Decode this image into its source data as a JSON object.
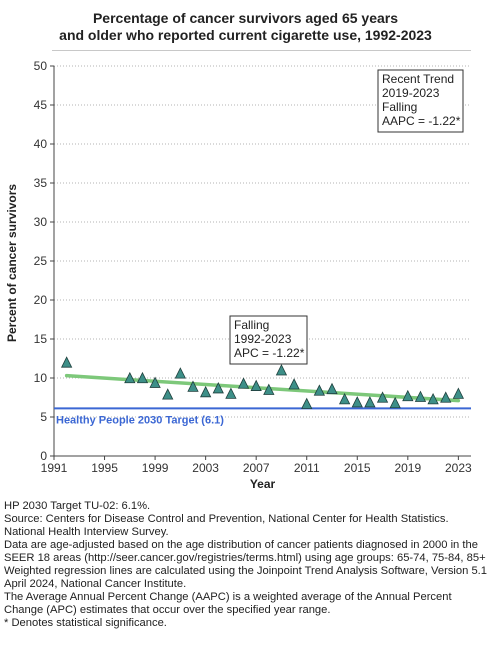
{
  "chart_data": {
    "type": "scatter",
    "title_lines": [
      "Percentage of cancer survivors aged 65 years",
      "and older who reported current cigarette use, 1992-2023"
    ],
    "xlabel": "Year",
    "ylabel": "Percent of cancer survivors",
    "xlim": [
      1991,
      2024
    ],
    "ylim": [
      0,
      50
    ],
    "xticks": [
      1991,
      1995,
      1999,
      2003,
      2007,
      2011,
      2015,
      2019,
      2023
    ],
    "yticks": [
      0,
      5,
      10,
      15,
      20,
      25,
      30,
      35,
      40,
      45,
      50
    ],
    "grid": "horizontal dotted",
    "points": [
      {
        "x": 1992,
        "y": 11.9
      },
      {
        "x": 1997,
        "y": 9.9
      },
      {
        "x": 1998,
        "y": 9.9
      },
      {
        "x": 1999,
        "y": 9.3
      },
      {
        "x": 2000,
        "y": 7.8
      },
      {
        "x": 2001,
        "y": 10.5
      },
      {
        "x": 2002,
        "y": 8.8
      },
      {
        "x": 2003,
        "y": 8.1
      },
      {
        "x": 2004,
        "y": 8.6
      },
      {
        "x": 2005,
        "y": 7.9
      },
      {
        "x": 2006,
        "y": 9.2
      },
      {
        "x": 2007,
        "y": 8.9
      },
      {
        "x": 2008,
        "y": 8.4
      },
      {
        "x": 2009,
        "y": 10.9
      },
      {
        "x": 2010,
        "y": 9.1
      },
      {
        "x": 2011,
        "y": 6.6
      },
      {
        "x": 2012,
        "y": 8.3
      },
      {
        "x": 2013,
        "y": 8.5
      },
      {
        "x": 2014,
        "y": 7.2
      },
      {
        "x": 2015,
        "y": 6.8
      },
      {
        "x": 2016,
        "y": 6.8
      },
      {
        "x": 2017,
        "y": 7.4
      },
      {
        "x": 2018,
        "y": 6.7
      },
      {
        "x": 2019,
        "y": 7.6
      },
      {
        "x": 2020,
        "y": 7.5
      },
      {
        "x": 2021,
        "y": 7.2
      },
      {
        "x": 2022,
        "y": 7.4
      },
      {
        "x": 2023,
        "y": 7.9
      }
    ],
    "trend_line": {
      "x": [
        1992,
        2023
      ],
      "y": [
        10.3,
        7.1
      ],
      "color": "#7dc87a"
    },
    "target": {
      "value": 6.1,
      "label": "Healthy People 2030 Target (6.1)",
      "color": "#3b67d4"
    },
    "annotations": [
      {
        "lines": [
          "Recent Trend",
          "2019-2023",
          "Falling",
          "AAPC = -1.22*"
        ]
      },
      {
        "lines": [
          "Falling",
          "1992-2023",
          "APC = -1.22*"
        ]
      }
    ],
    "marker_color": "#3d8f88"
  },
  "notes": [
    "HP 2030 Target TU-02: 6.1%.",
    "Source: Centers for Disease Control and Prevention, National Center for Health Statistics. National Health Interview Survey.",
    "Data are age-adjusted based on the age distribution of cancer patients diagnosed in 2000 in the SEER 18 areas (http://seer.cancer.gov/registries/terms.html) using age groups: 65-74, 75-84, 85+",
    "Weighted regression lines are calculated using the Joinpoint Trend Analysis Software, Version 5.1 April 2024, National Cancer Institute.",
    "The Average Annual Percent Change (AAPC) is a weighted average of the Annual Percent Change (APC) estimates that occur over the specified year range.",
    "* Denotes statistical significance."
  ]
}
